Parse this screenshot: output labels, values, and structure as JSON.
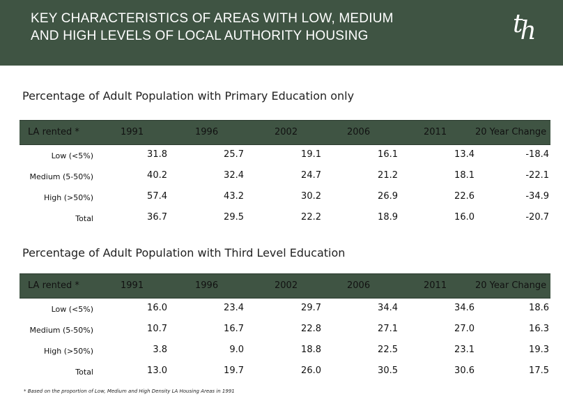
{
  "header": {
    "title_line1": "KEY CHARACTERISTICS OF AREAS WITH LOW, MEDIUM",
    "title_line2": "AND HIGH LEVELS OF LOCAL AUTHORITY HOUSING",
    "logo_part1": "t",
    "logo_part2": "h"
  },
  "columns": [
    "LA rented *",
    "1991",
    "1996",
    "2002",
    "2006",
    "2011",
    "20 Year Change"
  ],
  "table1": {
    "title": "Percentage of Adult Population with Primary Education only",
    "rows": [
      {
        "label": "Low (<5%)",
        "values": [
          "31.8",
          "25.7",
          "19.1",
          "16.1",
          "13.4",
          "-18.4"
        ]
      },
      {
        "label": "Medium (5-50%)",
        "values": [
          "40.2",
          "32.4",
          "24.7",
          "21.2",
          "18.1",
          "-22.1"
        ]
      },
      {
        "label": "High (>50%)",
        "values": [
          "57.4",
          "43.2",
          "30.2",
          "26.9",
          "22.6",
          "-34.9"
        ]
      },
      {
        "label": "Total",
        "values": [
          "36.7",
          "29.5",
          "22.2",
          "18.9",
          "16.0",
          "-20.7"
        ]
      }
    ]
  },
  "table2": {
    "title": "Percentage of Adult Population with Third Level Education",
    "rows": [
      {
        "label": "Low (<5%)",
        "values": [
          "16.0",
          "23.4",
          "29.7",
          "34.4",
          "34.6",
          "18.6"
        ]
      },
      {
        "label": "Medium (5-50%)",
        "values": [
          "10.7",
          "16.7",
          "22.8",
          "27.1",
          "27.0",
          "16.3"
        ]
      },
      {
        "label": "High (>50%)",
        "values": [
          "3.8",
          "9.0",
          "18.8",
          "22.5",
          "23.1",
          "19.3"
        ]
      },
      {
        "label": "Total",
        "values": [
          "13.0",
          "19.7",
          "26.0",
          "30.5",
          "30.6",
          "17.5"
        ]
      }
    ]
  },
  "footnote": "* Based on the proportion of Low, Medium and High Density LA Housing Areas in 1991",
  "colors": {
    "header_bg": "#3f5443",
    "text": "#111111"
  }
}
